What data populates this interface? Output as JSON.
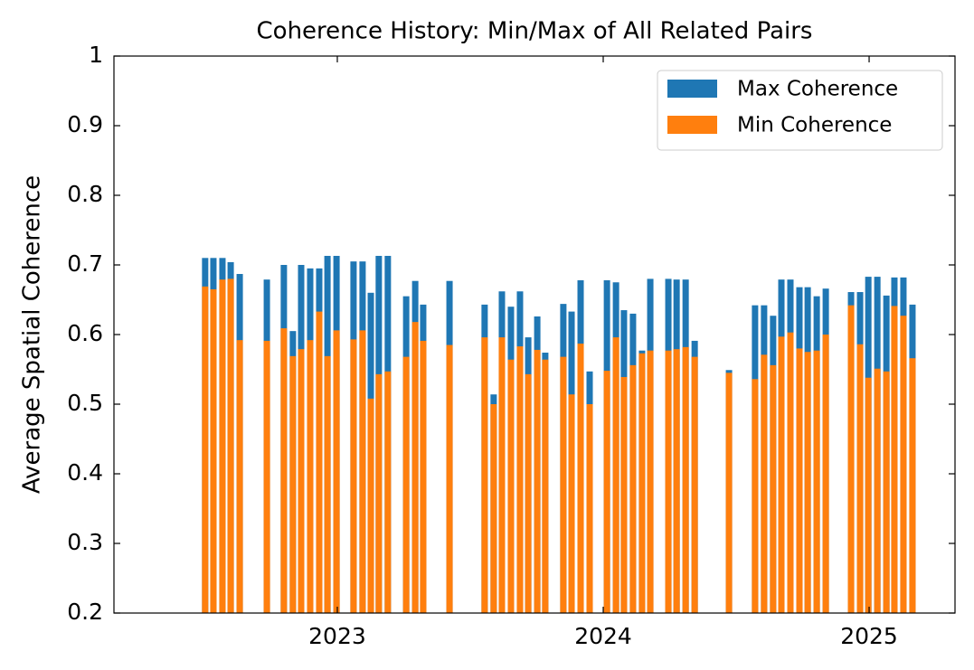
{
  "chart_data": {
    "type": "bar",
    "title": "Coherence History: Min/Max of All Related Pairs",
    "y_label": "Average Spatial Coherence",
    "x": [
      2022.503,
      2022.534,
      2022.568,
      2022.599,
      2022.633,
      2022.735,
      2022.799,
      2022.833,
      2022.864,
      2022.898,
      2022.932,
      2022.963,
      2022.997,
      2023.061,
      2023.095,
      2023.126,
      2023.156,
      2023.19,
      2023.259,
      2023.293,
      2023.323,
      2023.422,
      2023.554,
      2023.588,
      2023.619,
      2023.653,
      2023.687,
      2023.718,
      2023.752,
      2023.782,
      2023.85,
      2023.881,
      2023.915,
      2023.949,
      2024.014,
      2024.048,
      2024.078,
      2024.112,
      2024.146,
      2024.177,
      2024.245,
      2024.276,
      2024.31,
      2024.344,
      2024.473,
      2024.571,
      2024.605,
      2024.639,
      2024.67,
      2024.704,
      2024.738,
      2024.769,
      2024.803,
      2024.837,
      2024.932,
      2024.966,
      2024.997,
      2025.031,
      2025.065,
      2025.095,
      2025.129,
      2025.163
    ],
    "series": [
      {
        "name": "Max Coherence",
        "color": "#1f77b4",
        "values": [
          0.71,
          0.71,
          0.71,
          0.704,
          0.687,
          0.679,
          0.7,
          0.605,
          0.7,
          0.695,
          0.695,
          0.713,
          0.713,
          0.705,
          0.705,
          0.66,
          0.713,
          0.713,
          0.655,
          0.677,
          0.643,
          0.677,
          0.643,
          0.514,
          0.662,
          0.64,
          0.662,
          0.596,
          0.626,
          0.574,
          0.644,
          0.633,
          0.678,
          0.547,
          0.678,
          0.675,
          0.635,
          0.63,
          0.577,
          0.68,
          0.68,
          0.679,
          0.679,
          0.591,
          0.549,
          0.642,
          0.642,
          0.627,
          0.679,
          0.679,
          0.668,
          0.668,
          0.655,
          0.666,
          0.661,
          0.661,
          0.683,
          0.683,
          0.656,
          0.682,
          0.682,
          0.643
        ]
      },
      {
        "name": "Min Coherence",
        "color": "#ff7f0e",
        "values": [
          0.669,
          0.665,
          0.679,
          0.68,
          0.592,
          0.591,
          0.609,
          0.569,
          0.579,
          0.592,
          0.633,
          0.569,
          0.606,
          0.593,
          0.606,
          0.508,
          0.543,
          0.547,
          0.568,
          0.618,
          0.591,
          0.585,
          0.596,
          0.5,
          0.596,
          0.564,
          0.583,
          0.543,
          0.578,
          0.564,
          0.568,
          0.514,
          0.587,
          0.5,
          0.548,
          0.596,
          0.539,
          0.556,
          0.573,
          0.577,
          0.577,
          0.579,
          0.582,
          0.568,
          0.545,
          0.536,
          0.571,
          0.556,
          0.597,
          0.603,
          0.58,
          0.575,
          0.577,
          0.6,
          0.642,
          0.586,
          0.538,
          0.551,
          0.547,
          0.641,
          0.627,
          0.566
        ]
      }
    ],
    "xlim": [
      2022.16,
      2025.323
    ],
    "xticks": [
      2023,
      2024,
      2025
    ],
    "ylim": [
      0.2,
      1.0
    ],
    "yticks": [
      0.2,
      0.3,
      0.4,
      0.5,
      0.6,
      0.7,
      0.8,
      0.9,
      1.0
    ],
    "legend": "upper right"
  }
}
